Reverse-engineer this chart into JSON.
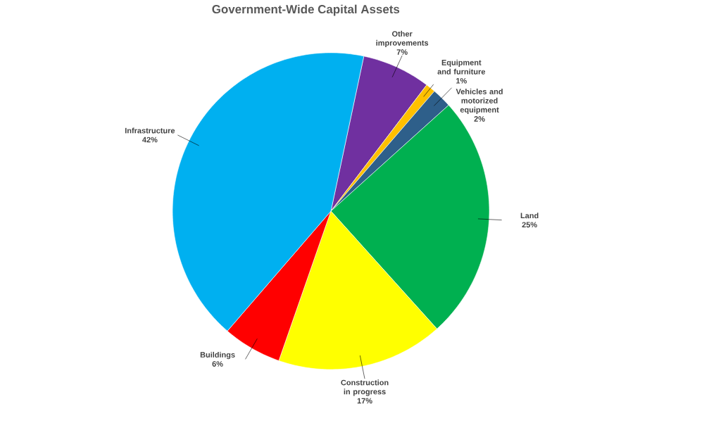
{
  "chart_data": {
    "type": "pie",
    "title": "Government-Wide Capital Assets",
    "categories": [
      "Other improvements",
      "Equipment and furniture",
      "Vehicles and motorized equipment",
      "Land",
      "Construction in progress",
      "Buildings",
      "Infrastructure"
    ],
    "values": [
      7,
      1,
      2,
      25,
      17,
      6,
      42
    ],
    "value_labels": [
      "7%",
      "1%",
      "2%",
      "25%",
      "17%",
      "6%",
      "42%"
    ],
    "colors": [
      "#7030a0",
      "#ffc000",
      "#2e5f8a",
      "#00b050",
      "#ffff00",
      "#ff0000",
      "#00b0f0"
    ]
  }
}
